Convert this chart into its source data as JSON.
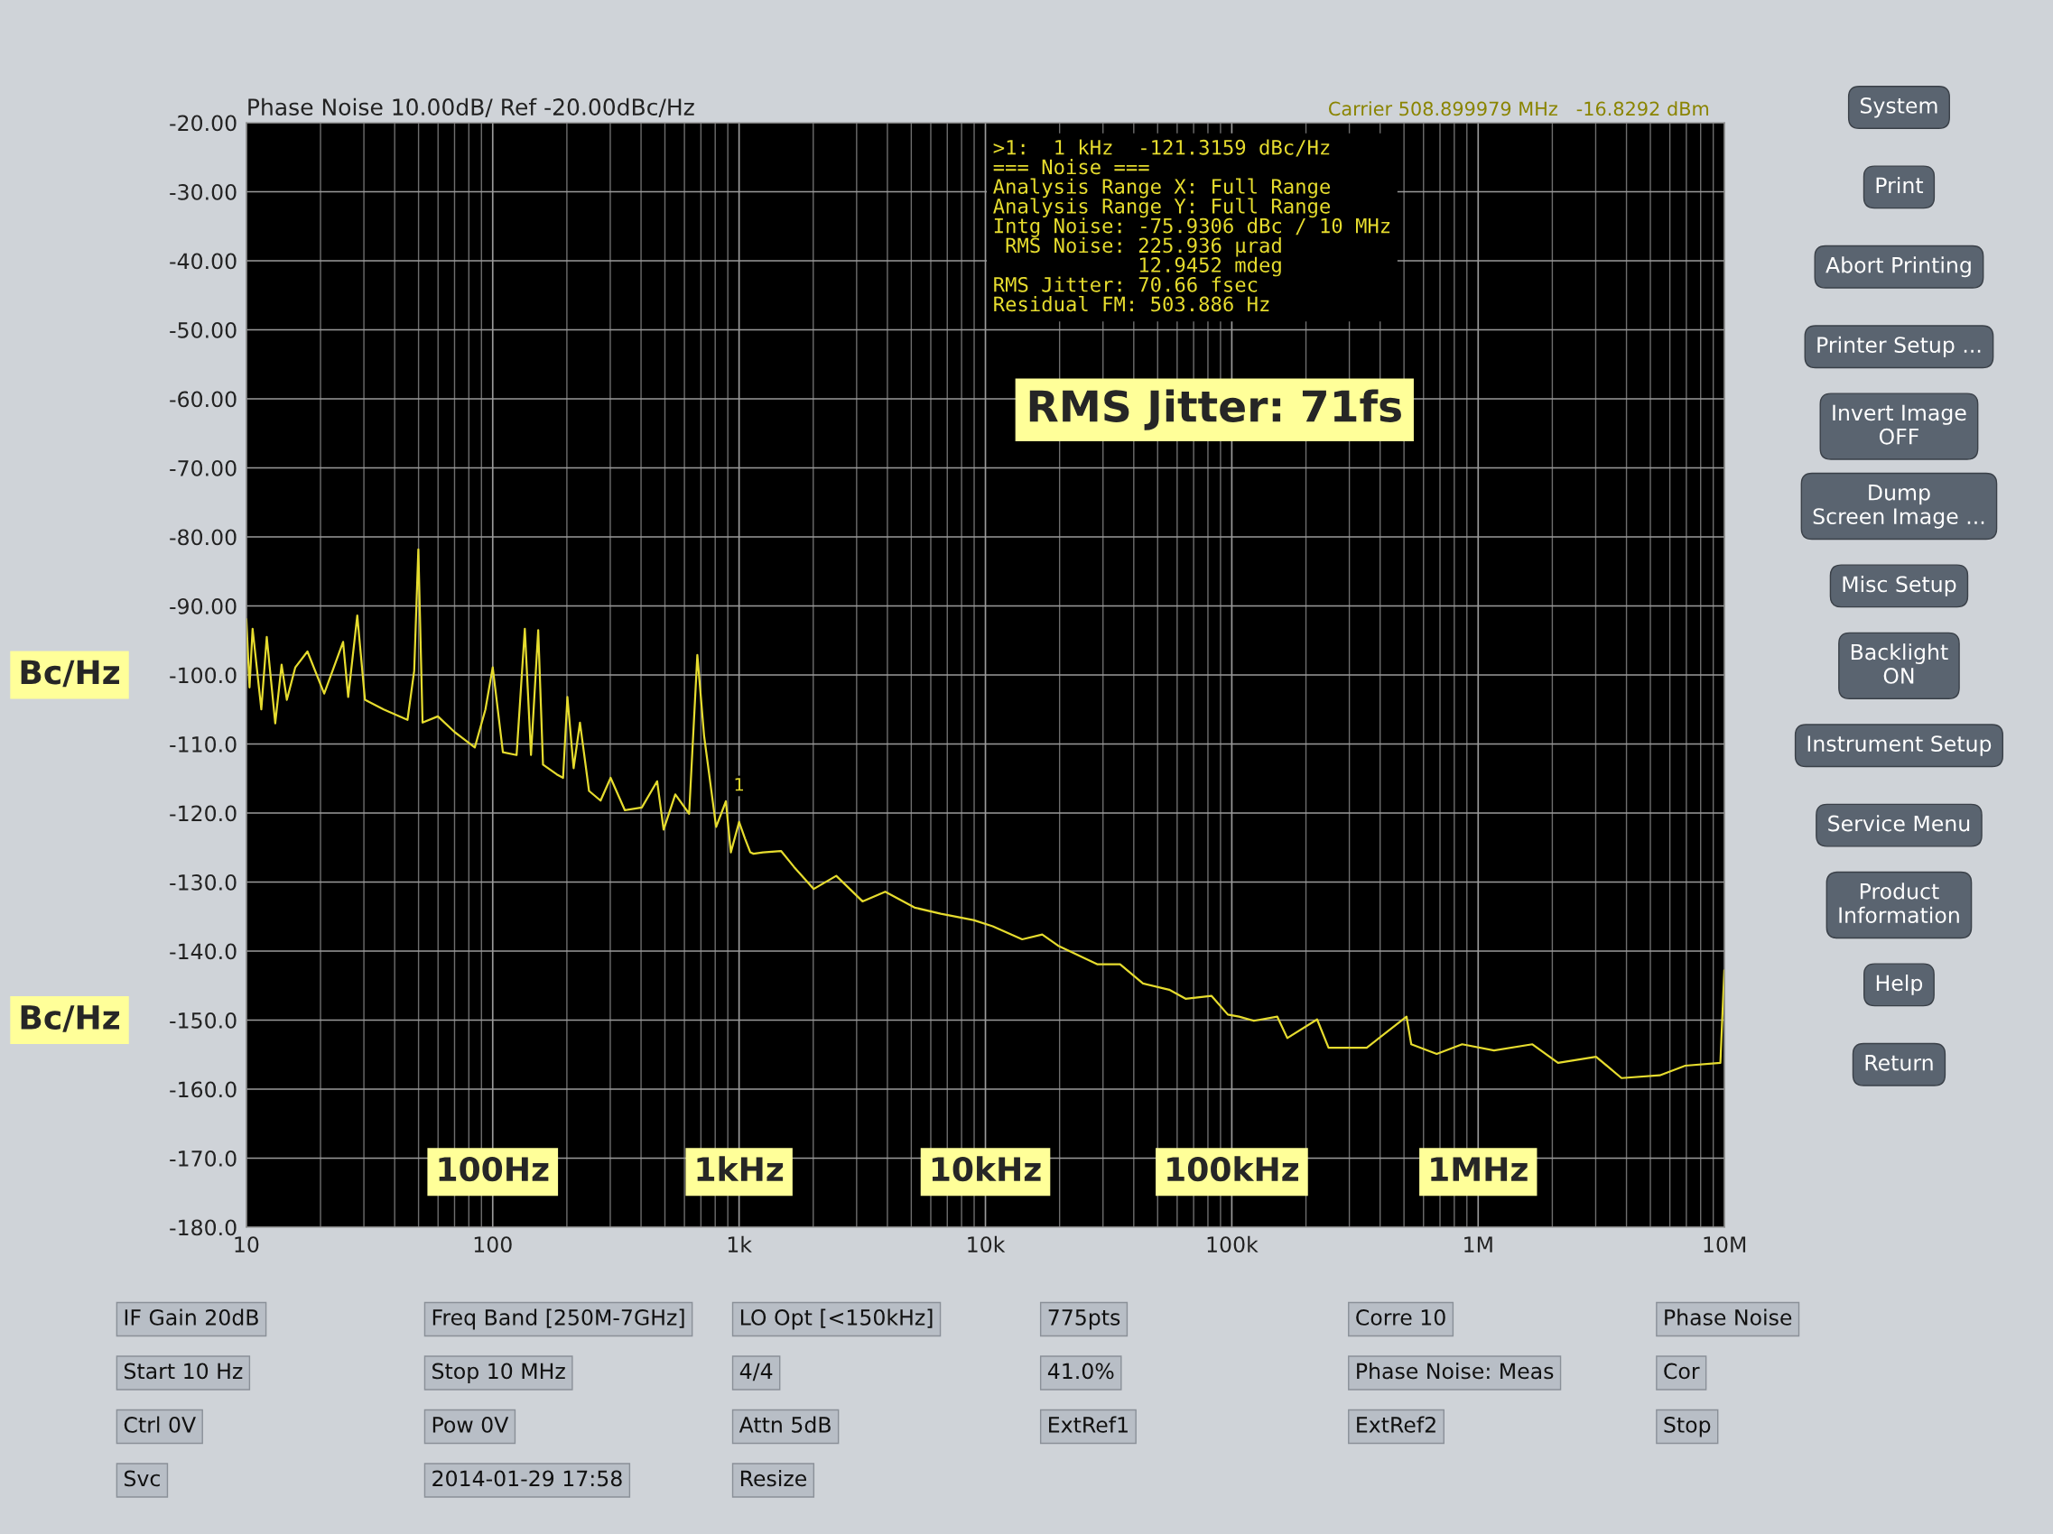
{
  "chart_data": {
    "type": "line",
    "title": "Phase Noise 10.00dB/ Ref -20.00dBc/Hz",
    "log": "x",
    "grid": true,
    "legend": false,
    "marker": "none",
    "line_style": "solid",
    "xlim": [
      10,
      10000000
    ],
    "ylim": [
      -180,
      -20
    ],
    "xticks": [
      {
        "value": 10,
        "label": "10"
      },
      {
        "value": 100,
        "label": "100"
      },
      {
        "value": 1000,
        "label": "1k"
      },
      {
        "value": 10000,
        "label": "10k"
      },
      {
        "value": 100000,
        "label": "100k"
      },
      {
        "value": 1000000,
        "label": "1M"
      },
      {
        "value": 10000000,
        "label": "10M"
      }
    ],
    "yticks": [
      {
        "value": -20,
        "label": "-20.00"
      },
      {
        "value": -30,
        "label": "-30.00"
      },
      {
        "value": -40,
        "label": "-40.00"
      },
      {
        "value": -50,
        "label": "-50.00"
      },
      {
        "value": -60,
        "label": "-60.00"
      },
      {
        "value": -70,
        "label": "-70.00"
      },
      {
        "value": -80,
        "label": "-80.00"
      },
      {
        "value": -90,
        "label": "-90.00"
      },
      {
        "value": -100,
        "label": "-100.0"
      },
      {
        "value": -110,
        "label": "-110.0"
      },
      {
        "value": -120,
        "label": "-120.0"
      },
      {
        "value": -130,
        "label": "-130.0"
      },
      {
        "value": -140,
        "label": "-140.0"
      },
      {
        "value": -150,
        "label": "-150.0"
      },
      {
        "value": -160,
        "label": "-160.0"
      },
      {
        "value": -170,
        "label": "-170.0"
      },
      {
        "value": -180,
        "label": "-180.0"
      }
    ],
    "series": [
      {
        "color": "#e6dc2e",
        "x": [
          10,
          10.3,
          10.6,
          11.5,
          12.1,
          13.1,
          13.9,
          14.6,
          15.8,
          17.7,
          20.7,
          24.7,
          25.9,
          28.2,
          30.3,
          36.1,
          45.1,
          48.0,
          49.9,
          51.9,
          59.9,
          70.2,
          84.6,
          93.4,
          100,
          110,
          125,
          135,
          143,
          153,
          160,
          182,
          193,
          201,
          213,
          226,
          246,
          274,
          301,
          344,
          403,
          465,
          494,
          551,
          627,
          677,
          721,
          807,
          884,
          926,
          1000,
          1057,
          1111,
          1144,
          1250,
          1480,
          1670,
          2010,
          2480,
          3170,
          3920,
          5160,
          6590,
          8940,
          10700,
          14100,
          17000,
          19700,
          28400,
          35200,
          43600,
          55700,
          64900,
          82800,
          96400,
          107000,
          123000,
          153000,
          168000,
          222000,
          247000,
          353000,
          512000,
          535000,
          679000,
          861000,
          1160000,
          1660000,
          2110000,
          3010000,
          3820000,
          5460000,
          6930000,
          9620000,
          9980000
        ],
        "values": [
          -91.9,
          -101.8,
          -93.3,
          -105,
          -94.5,
          -107,
          -98.5,
          -103.6,
          -98.9,
          -96.6,
          -102.7,
          -95.2,
          -103.2,
          -91.4,
          -103.6,
          -105,
          -106.5,
          -99.4,
          -81.8,
          -106.9,
          -106,
          -108.3,
          -110.5,
          -105,
          -98.9,
          -111.2,
          -111.6,
          -93.3,
          -111.6,
          -93.5,
          -113,
          -114.4,
          -114.9,
          -103.2,
          -113.5,
          -106.9,
          -116.8,
          -118.2,
          -114.9,
          -119.6,
          -119.2,
          -115.4,
          -122.4,
          -117.3,
          -120.1,
          -97.1,
          -108.8,
          -122,
          -118.3,
          -125.7,
          -121.3,
          -123.7,
          -125.7,
          -125.9,
          -125.7,
          -125.5,
          -127.8,
          -131,
          -129.1,
          -132.8,
          -131.4,
          -133.7,
          -134.6,
          -135.5,
          -136.4,
          -138.3,
          -137.6,
          -139.2,
          -141.9,
          -141.9,
          -144.7,
          -145.6,
          -146.9,
          -146.5,
          -149.2,
          -149.5,
          -150.1,
          -149.5,
          -152.6,
          -149.9,
          -154,
          -154,
          -149.5,
          -153.5,
          -154.9,
          -153.5,
          -154.4,
          -153.5,
          -156.2,
          -155.3,
          -158.4,
          -158,
          -156.6,
          -156.2,
          -142.8
        ]
      }
    ],
    "annotations": [
      "Carrier 508.899979 MHz   -16.8292 dBm",
      ">1:  1 kHz  -121.3159 dBc/Hz\n=== Noise ===\nAnalysis Range X: Full Range\nAnalysis Range Y: Full Range\nIntg Noise: -75.9306 dBc / 10 MHz\n RMS Noise: 225.936 µrad\n            12.9452 mdeg\nRMS Jitter: 70.66 fsec\nResidual FM: 503.886 Hz",
      "RMS Jitter: 71fs",
      "100Hz",
      "1kHz",
      "10kHz",
      "100kHz",
      "1MHz",
      "Bc/Hz",
      "Bc/Hz",
      "System",
      "Print",
      "Abort Printing",
      "Printer Setup ...",
      "Invert Image\nOFF",
      "Dump\nScreen Image ...",
      "Misc Setup",
      "Backlight\nON",
      "Instrument Setup",
      "Service Menu",
      "Product\nInformation",
      "Help",
      "Return",
      "IF Gain 20dB",
      "Freq Band [250M-7GHz]",
      "LO Opt [<150kHz]",
      "775pts",
      "Corre 10",
      "Phase Noise",
      "Start 10 Hz",
      "Stop 10 MHz",
      "4/4",
      "41.0%",
      "Phase Noise: Meas",
      "Cor",
      "Ctrl 0V",
      "Pow 0V",
      "Attn 5dB",
      "ExtRef1",
      "ExtRef2",
      "Stop",
      "Svc",
      "2014-01-29 17:58",
      "Resize",
      {
        "text": "1",
        "x": 1000,
        "y": -121.3
      }
    ]
  }
}
